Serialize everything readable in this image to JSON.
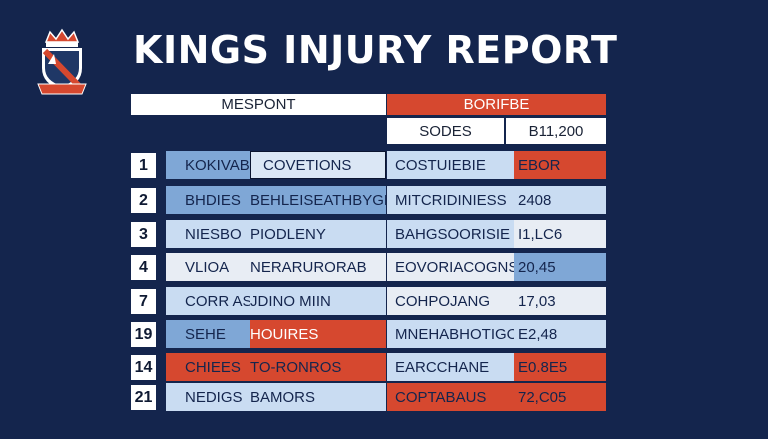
{
  "title": "KINGS INJURY REPORT",
  "header": {
    "left": "MESPONT",
    "right": "BORIFBE"
  },
  "subheader": {
    "a": "SODES",
    "b": "B11,200"
  },
  "rows": [
    {
      "num": "1",
      "c1": "KOKIVAB",
      "c2": "COVETIONS",
      "c3": "COSTUIEBIE",
      "c4": "EBOR"
    },
    {
      "num": "2",
      "c1": "BHDIES",
      "c2": "BEHLEISEATHBYGE",
      "c3": "MITCRIDINIESS",
      "c4": "2408"
    },
    {
      "num": "3",
      "c1": "NIESBO",
      "c2": "PIODLENY",
      "c3": "BAHGSOORISIE",
      "c4": "I1,LC6"
    },
    {
      "num": "4",
      "c1": "VLIOA",
      "c2": "NERARURORAB",
      "c3": "EOVORIACOGNS",
      "c4": "20,45"
    },
    {
      "num": "7",
      "c1": "CORR AS",
      "c2": "JDINO MIIN",
      "c3": "COHPOJANG",
      "c4": "17,03"
    },
    {
      "num": "19",
      "c1": "SEHE",
      "c2": "HOUIRES",
      "c3": "MNEHABHOTIGO",
      "c4": "E2,48"
    },
    {
      "num": "14",
      "c1": "CHIEES",
      "c2": "TO-RONROS",
      "c3": "EARCCHANE",
      "c4": "E0.8E5"
    },
    {
      "num": "21",
      "c1": "NEDIGS",
      "c2": "BAMORS",
      "c3": "COPTABAUS",
      "c4": "72,C05"
    }
  ],
  "colors": {
    "background": "#14254d",
    "accent_red": "#d6482f",
    "light_blue": "#c9dcf2",
    "mid_blue": "#7fa7d6",
    "pale": "#e8edf4"
  },
  "icons": {
    "logo": "crown-shield-crest-icon"
  }
}
